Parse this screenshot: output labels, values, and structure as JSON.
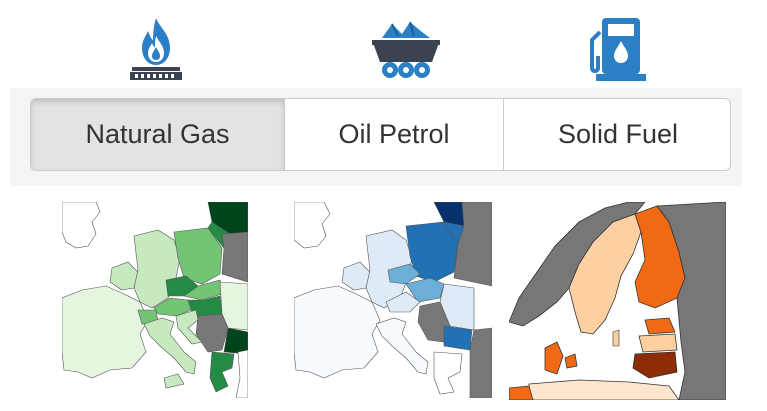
{
  "icons": {
    "gas": "gas-flame-burner-icon",
    "coal": "coal-mine-cart-icon",
    "fuel": "fuel-pump-icon"
  },
  "colors": {
    "icon_blue": "#2b7fc4",
    "icon_dark": "#3b4350",
    "gas_scale": [
      "#f7fcf5",
      "#c7e9c0",
      "#74c476",
      "#238b45",
      "#00441b"
    ],
    "oil_scale": [
      "#f7fbff",
      "#c6dbef",
      "#6baed6",
      "#2171b5",
      "#08306b"
    ],
    "solid_scale": [
      "#fff5eb",
      "#fdd0a2",
      "#fd8d3c",
      "#e6550d",
      "#7f2704"
    ],
    "no_data": "#777777"
  },
  "tabs": [
    {
      "id": "gas",
      "label": "Natural Gas",
      "active": true
    },
    {
      "id": "oil",
      "label": "Oil Petrol",
      "active": false
    },
    {
      "id": "solid",
      "label": "Solid Fuel",
      "active": false
    }
  ]
}
